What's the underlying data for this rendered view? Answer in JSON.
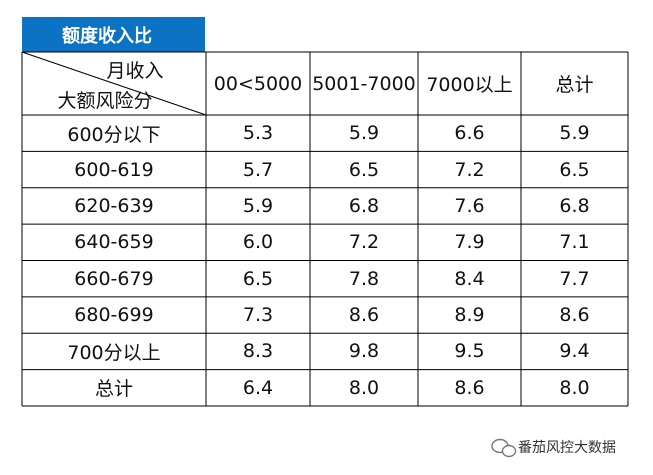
{
  "title": "额度收入比",
  "header": {
    "corner_top": "月收入",
    "corner_bottom": "大额风险分",
    "columns": [
      "00<5000",
      "5001-7000",
      "7000以上",
      "总计"
    ]
  },
  "rows": [
    [
      "600分以下",
      "5.3",
      "5.9",
      "6.6",
      "5.9"
    ],
    [
      "600-619",
      "5.7",
      "6.5",
      "7.2",
      "6.5"
    ],
    [
      "620-639",
      "5.9",
      "6.8",
      "7.6",
      "6.8"
    ],
    [
      "640-659",
      "6.0",
      "7.2",
      "7.9",
      "7.1"
    ],
    [
      "660-679",
      "6.5",
      "7.8",
      "8.4",
      "7.7"
    ],
    [
      "680-699",
      "7.3",
      "8.6",
      "8.9",
      "8.6"
    ],
    [
      "700分以上",
      "8.3",
      "9.8",
      "9.5",
      "9.4"
    ],
    [
      "总计",
      "6.4",
      "8.0",
      "8.6",
      "8.0"
    ]
  ],
  "watermark": "番茄风控大数据"
}
